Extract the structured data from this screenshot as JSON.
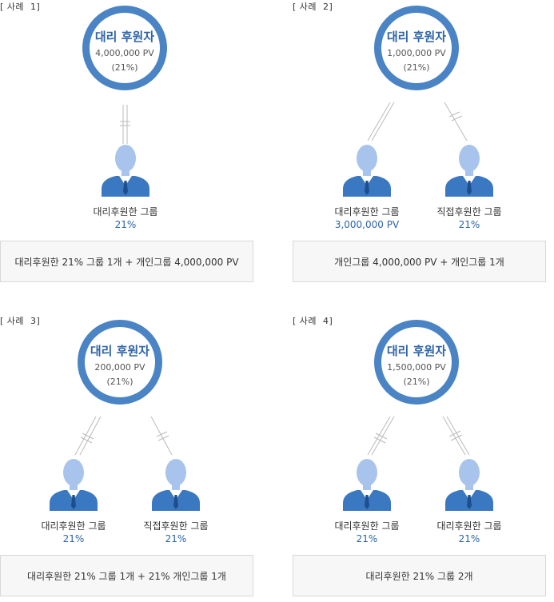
{
  "cases": [
    {
      "label": "[ 사례  1]",
      "sponsor": {
        "title": "대리 후원자",
        "amount": "4,000,000 PV",
        "percent": "(21%)"
      },
      "groups": [
        {
          "label": "대리후원한 그룹",
          "value": "21%"
        }
      ],
      "summary": "대리후원한 21% 그룹 1개 + 개인그룹 4,000,000 PV"
    },
    {
      "label": "[ 사례  2]",
      "sponsor": {
        "title": "대리 후원자",
        "amount": "1,000,000 PV",
        "percent": "(21%)"
      },
      "groups": [
        {
          "label": "대리후원한 그룹",
          "value": "3,000,000 PV"
        },
        {
          "label": "직접후원한 그룹",
          "value": "21%"
        }
      ],
      "summary": "개인그룹 4,000,000 PV + 개인그룹 1개"
    },
    {
      "label": "[ 사례  3]",
      "sponsor": {
        "title": "대리 후원자",
        "amount": "200,000 PV",
        "percent": "(21%)"
      },
      "groups": [
        {
          "label": "대리후원한 그룹",
          "value": "21%"
        },
        {
          "label": "직접후원한 그룹",
          "value": "21%"
        }
      ],
      "summary": "대리후원한 21% 그룹 1개 + 21% 개인그룹 1개"
    },
    {
      "label": "[ 사례  4]",
      "sponsor": {
        "title": "대리 후원자",
        "amount": "1,500,000 PV",
        "percent": "(21%)"
      },
      "groups": [
        {
          "label": "대리후원한 그룹",
          "value": "21%"
        },
        {
          "label": "대리후원한 그룹",
          "value": "21%"
        }
      ],
      "summary": "대리후원한 21% 그룹 2개"
    }
  ],
  "colors": {
    "ring": "#4a84c4",
    "title": "#2e64a8",
    "person": "#3b78c2",
    "head": "#a9c4ec",
    "value": "#2d64a8"
  },
  "icons": [
    "person-icon"
  ]
}
